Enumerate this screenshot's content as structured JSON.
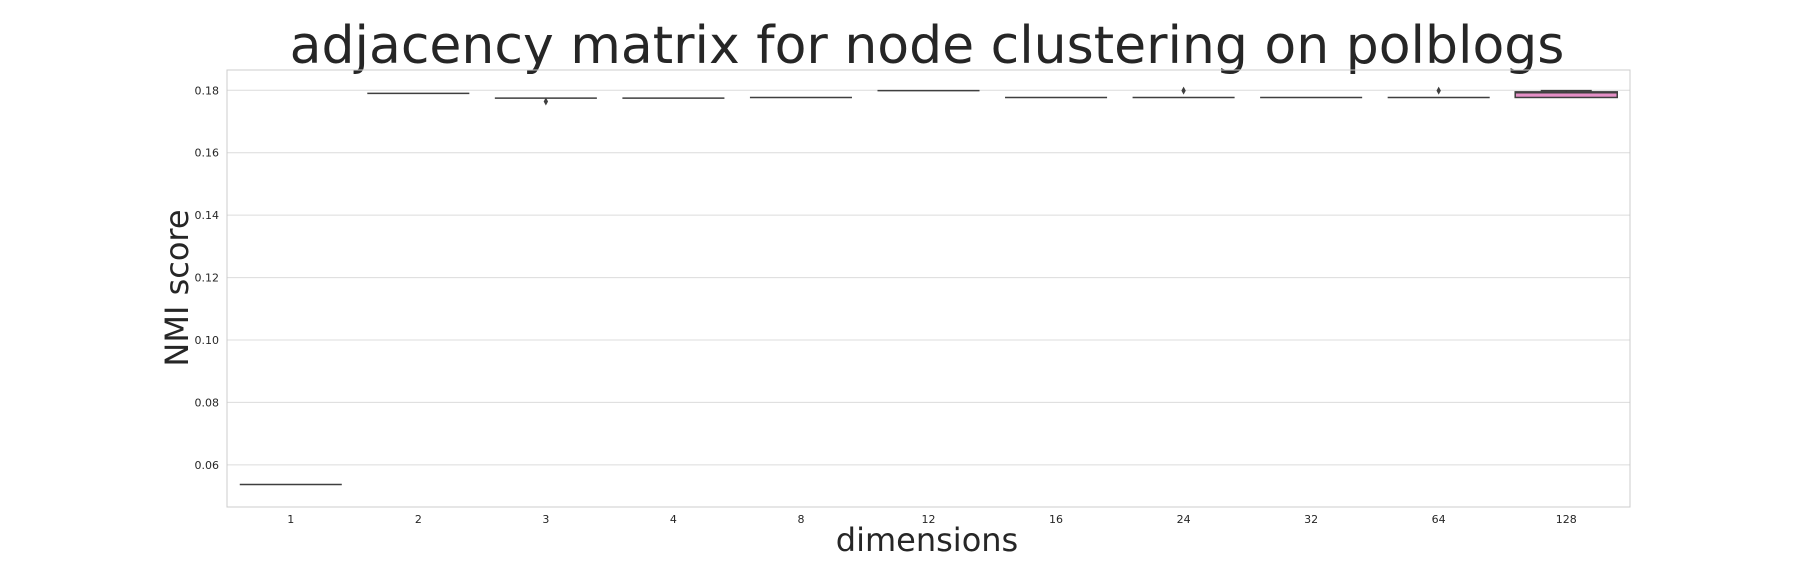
{
  "chart_data": {
    "type": "box",
    "title": "adjacency matrix for node clustering on polblogs",
    "xlabel": "dimensions",
    "ylabel": "NMI score",
    "categories": [
      "1",
      "2",
      "3",
      "4",
      "8",
      "12",
      "16",
      "24",
      "32",
      "64",
      "128"
    ],
    "yticks": [
      "0.06",
      "0.08",
      "0.10",
      "0.12",
      "0.14",
      "0.16",
      "0.18"
    ],
    "ylim": [
      0.0465,
      0.1865
    ],
    "grid": true,
    "boxes": [
      {
        "q1": 0.0537,
        "median": 0.0537,
        "q3": 0.0537,
        "whisker_low": 0.0537,
        "whisker_high": 0.0537,
        "outliers": []
      },
      {
        "q1": 0.179,
        "median": 0.179,
        "q3": 0.179,
        "whisker_low": 0.179,
        "whisker_high": 0.179,
        "outliers": []
      },
      {
        "q1": 0.1775,
        "median": 0.1775,
        "q3": 0.1775,
        "whisker_low": 0.1775,
        "whisker_high": 0.1775,
        "outliers": [
          0.1764
        ]
      },
      {
        "q1": 0.1775,
        "median": 0.1775,
        "q3": 0.1775,
        "whisker_low": 0.1775,
        "whisker_high": 0.1775,
        "outliers": []
      },
      {
        "q1": 0.1777,
        "median": 0.1777,
        "q3": 0.1777,
        "whisker_low": 0.1777,
        "whisker_high": 0.1777,
        "outliers": []
      },
      {
        "q1": 0.1799,
        "median": 0.1799,
        "q3": 0.1799,
        "whisker_low": 0.1799,
        "whisker_high": 0.1799,
        "outliers": []
      },
      {
        "q1": 0.1777,
        "median": 0.1777,
        "q3": 0.1777,
        "whisker_low": 0.1777,
        "whisker_high": 0.1777,
        "outliers": []
      },
      {
        "q1": 0.1777,
        "median": 0.1777,
        "q3": 0.1777,
        "whisker_low": 0.1777,
        "whisker_high": 0.1777,
        "outliers": [
          0.1799
        ]
      },
      {
        "q1": 0.1777,
        "median": 0.1777,
        "q3": 0.1777,
        "whisker_low": 0.1777,
        "whisker_high": 0.1777,
        "outliers": []
      },
      {
        "q1": 0.1777,
        "median": 0.1777,
        "q3": 0.1777,
        "whisker_low": 0.1777,
        "whisker_high": 0.1777,
        "outliers": [
          0.1799
        ]
      },
      {
        "q1": 0.1777,
        "median": 0.1792,
        "q3": 0.1795,
        "whisker_low": 0.1777,
        "whisker_high": 0.1799,
        "outliers": [],
        "color": "#e58fc6"
      }
    ]
  }
}
